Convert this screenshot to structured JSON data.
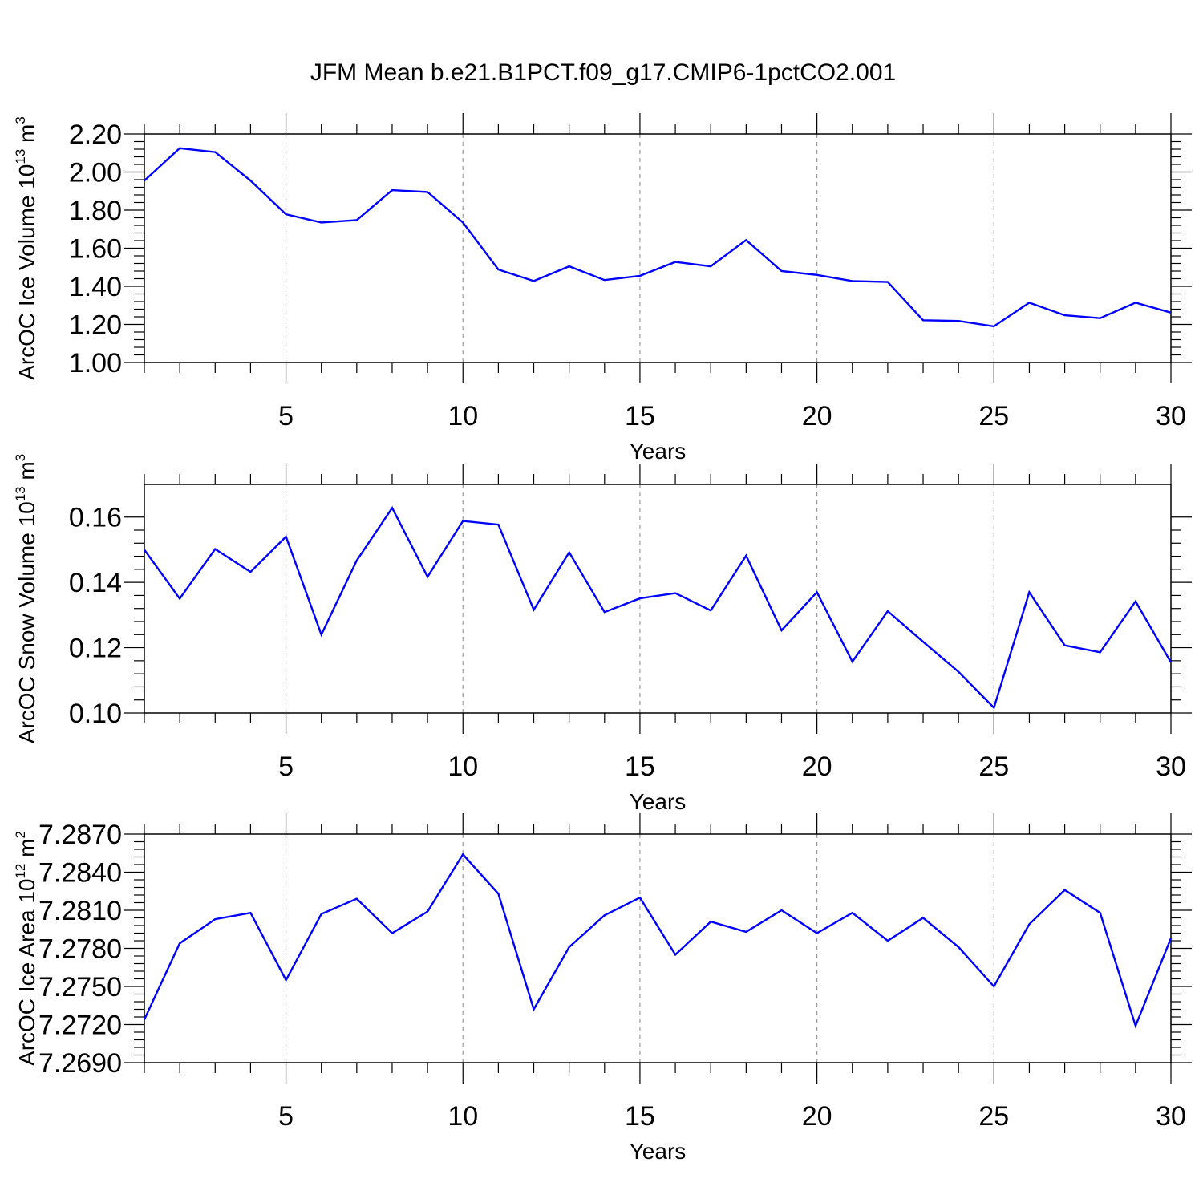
{
  "chart_data": [
    {
      "type": "line",
      "title": "JFM Mean b.e21.B1PCT.f09_g17.CMIP6-1pctCO2.001",
      "xlabel": "Years",
      "ylabel": "ArcOC Ice Volume 10",
      "ylabel_exp": "13",
      "ylabel_unit": " m",
      "ylabel_unit_exp": "3",
      "xlim": [
        1,
        30
      ],
      "ylim": [
        1.0,
        2.2
      ],
      "xticks": [
        5,
        10,
        15,
        20,
        25,
        30
      ],
      "yticks": [
        1.0,
        1.2,
        1.4,
        1.6,
        1.8,
        2.0,
        2.2
      ],
      "ytick_labels": [
        "1.00",
        "1.20",
        "1.40",
        "1.60",
        "1.80",
        "2.00",
        "2.20"
      ],
      "grid": "x-dashed",
      "series": [
        {
          "name": "Ice Volume",
          "color": "#0000ff",
          "x": [
            1,
            2,
            3,
            4,
            5,
            6,
            7,
            8,
            9,
            10,
            11,
            12,
            13,
            14,
            15,
            16,
            17,
            18,
            19,
            20,
            21,
            22,
            23,
            24,
            25,
            26,
            27,
            28,
            29,
            30
          ],
          "values": [
            1.955,
            2.125,
            2.105,
            1.955,
            1.778,
            1.735,
            1.748,
            1.905,
            1.895,
            1.735,
            1.488,
            1.428,
            1.505,
            1.433,
            1.455,
            1.528,
            1.505,
            1.643,
            1.48,
            1.46,
            1.428,
            1.423,
            1.222,
            1.218,
            1.19,
            1.314,
            1.248,
            1.233,
            1.314,
            1.262
          ]
        }
      ]
    },
    {
      "type": "line",
      "xlabel": "Years",
      "ylabel": "ArcOC Snow Volume 10",
      "ylabel_exp": "13",
      "ylabel_unit": " m",
      "ylabel_unit_exp": "3",
      "xlim": [
        1,
        30
      ],
      "ylim": [
        0.1,
        0.17
      ],
      "xticks": [
        5,
        10,
        15,
        20,
        25,
        30
      ],
      "yticks": [
        0.1,
        0.12,
        0.14,
        0.16
      ],
      "ytick_labels": [
        "0.10",
        "0.12",
        "0.14",
        "0.16"
      ],
      "grid": "x-dashed",
      "series": [
        {
          "name": "Snow Volume",
          "color": "#0000ff",
          "x": [
            1,
            2,
            3,
            4,
            5,
            6,
            7,
            8,
            9,
            10,
            11,
            12,
            13,
            14,
            15,
            16,
            17,
            18,
            19,
            20,
            21,
            22,
            23,
            24,
            25,
            26,
            27,
            28,
            29,
            30
          ],
          "values": [
            0.15,
            0.135,
            0.1502,
            0.1432,
            0.154,
            0.124,
            0.1467,
            0.1628,
            0.1417,
            0.1588,
            0.1577,
            0.1316,
            0.1492,
            0.1309,
            0.1351,
            0.1367,
            0.1314,
            0.1482,
            0.1253,
            0.137,
            0.1157,
            0.1312,
            0.1218,
            0.1126,
            0.1016,
            0.137,
            0.1207,
            0.1186,
            0.1342,
            0.1155
          ]
        }
      ]
    },
    {
      "type": "line",
      "xlabel": "Years",
      "ylabel": "ArcOC Ice Area 10",
      "ylabel_exp": "12",
      "ylabel_unit": " m",
      "ylabel_unit_exp": "2",
      "xlim": [
        1,
        30
      ],
      "ylim": [
        7.269,
        7.287
      ],
      "xticks": [
        5,
        10,
        15,
        20,
        25,
        30
      ],
      "yticks": [
        7.269,
        7.272,
        7.275,
        7.278,
        7.281,
        7.284,
        7.287
      ],
      "ytick_labels": [
        "7.2690",
        "7.2720",
        "7.2750",
        "7.2780",
        "7.2810",
        "7.2840",
        "7.2870"
      ],
      "grid": "x-dashed",
      "series": [
        {
          "name": "Ice Area",
          "color": "#0000ff",
          "x": [
            1,
            2,
            3,
            4,
            5,
            6,
            7,
            8,
            9,
            10,
            11,
            12,
            13,
            14,
            15,
            16,
            17,
            18,
            19,
            20,
            21,
            22,
            23,
            24,
            25,
            26,
            27,
            28,
            29,
            30
          ],
          "values": [
            7.2724,
            7.2784,
            7.2803,
            7.2808,
            7.2755,
            7.2807,
            7.2819,
            7.2792,
            7.2809,
            7.2854,
            7.2823,
            7.2732,
            7.2781,
            7.2806,
            7.282,
            7.2775,
            7.2801,
            7.2793,
            7.281,
            7.2792,
            7.2808,
            7.2786,
            7.2804,
            7.2781,
            7.275,
            7.2799,
            7.2826,
            7.2808,
            7.2719,
            7.2788
          ]
        }
      ]
    }
  ]
}
